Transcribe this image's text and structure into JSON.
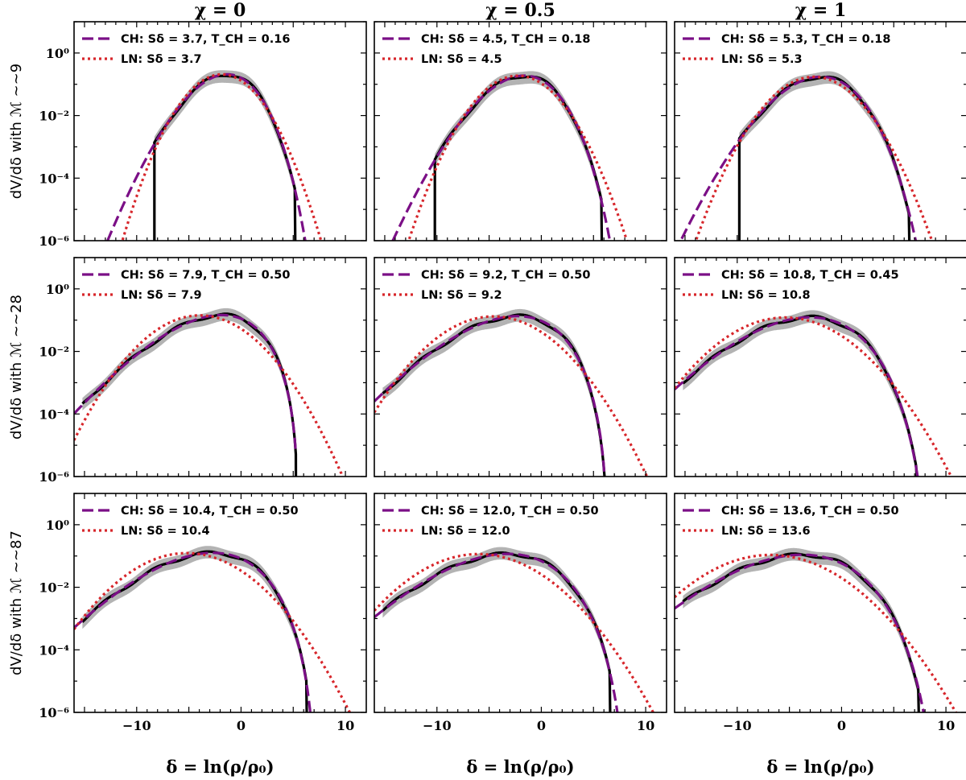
{
  "chart_data": {
    "type": "line",
    "xlabel": "δ = ln(ρ/ρ₀)",
    "ylabel_prefix": "dV/dδ with ℳ ~",
    "xlim": [
      -16,
      12
    ],
    "ylim_log10": [
      -6,
      1
    ],
    "xticks": [
      -10,
      0,
      10
    ],
    "xtick_labels": [
      "−10",
      "0",
      "10"
    ],
    "yticks_log10": [
      0,
      -2,
      -4,
      -6
    ],
    "ytick_labels": [
      "10⁰",
      "10⁻²",
      "10⁻⁴",
      "10⁻⁶"
    ],
    "y_scale": "log",
    "legend_placement": "upper-left",
    "columns": [
      "χ = 0",
      "χ = 0.5",
      "χ = 1"
    ],
    "rows": [
      "~9",
      "~28",
      "~87"
    ],
    "series_styles": {
      "CH": {
        "color": "#7b0f86",
        "dash": "dashed"
      },
      "LN": {
        "color": "#d7262b",
        "dash": "dotted"
      },
      "sim": {
        "color": "#000000",
        "band_color": "#b3b3b3"
      }
    },
    "panels": [
      {
        "row": 0,
        "col": 0,
        "ch_label": "CH: Sδ = 3.7, T_CH = 0.16",
        "ln_label": "LN: Sδ = 3.7",
        "S": 3.7,
        "T": 0.16,
        "xmin_sim": -8.3,
        "xmax_sim": 5.2,
        "sim_left_drop": true
      },
      {
        "row": 0,
        "col": 1,
        "ch_label": "CH: Sδ = 4.5, T_CH = 0.18",
        "ln_label": "LN: Sδ = 4.5",
        "S": 4.5,
        "T": 0.18,
        "xmin_sim": -10.2,
        "xmax_sim": 5.8,
        "sim_left_drop": true
      },
      {
        "row": 0,
        "col": 2,
        "ch_label": "CH: Sδ = 5.3, T_CH = 0.18",
        "ln_label": "LN: Sδ = 5.3",
        "S": 5.3,
        "T": 0.18,
        "xmin_sim": -9.8,
        "xmax_sim": 6.5,
        "sim_left_drop": true
      },
      {
        "row": 1,
        "col": 0,
        "ch_label": "CH: Sδ = 7.9, T_CH = 0.50",
        "ln_label": "LN: Sδ = 7.9",
        "S": 7.9,
        "T": 0.5,
        "xmin_sim": -15.2,
        "xmax_sim": 6.2,
        "sim_left_drop": false
      },
      {
        "row": 1,
        "col": 1,
        "ch_label": "CH: Sδ = 9.2, T_CH = 0.50",
        "ln_label": "LN: Sδ = 9.2",
        "S": 9.2,
        "T": 0.5,
        "xmin_sim": -15.2,
        "xmax_sim": 6.5,
        "sim_left_drop": false
      },
      {
        "row": 1,
        "col": 2,
        "ch_label": "CH: Sδ = 10.8, T_CH = 0.45",
        "ln_label": "LN: Sδ = 10.8",
        "S": 10.8,
        "T": 0.45,
        "xmin_sim": -15.2,
        "xmax_sim": 7.2,
        "sim_left_drop": false
      },
      {
        "row": 2,
        "col": 0,
        "ch_label": "CH: Sδ = 10.4, T_CH = 0.50",
        "ln_label": "LN: Sδ = 10.4",
        "S": 10.4,
        "T": 0.5,
        "xmin_sim": -15.2,
        "xmax_sim": 6.3,
        "sim_left_drop": false
      },
      {
        "row": 2,
        "col": 1,
        "ch_label": "CH: Sδ = 12.0, T_CH = 0.50",
        "ln_label": "LN: Sδ = 12.0",
        "S": 12.0,
        "T": 0.5,
        "xmin_sim": -15.2,
        "xmax_sim": 6.6,
        "sim_left_drop": false
      },
      {
        "row": 2,
        "col": 2,
        "ch_label": "CH: Sδ = 13.6, T_CH = 0.50",
        "ln_label": "LN: Sδ = 13.6",
        "S": 13.6,
        "T": 0.5,
        "xmin_sim": -15.2,
        "xmax_sim": 7.4,
        "sim_left_drop": false
      }
    ]
  }
}
